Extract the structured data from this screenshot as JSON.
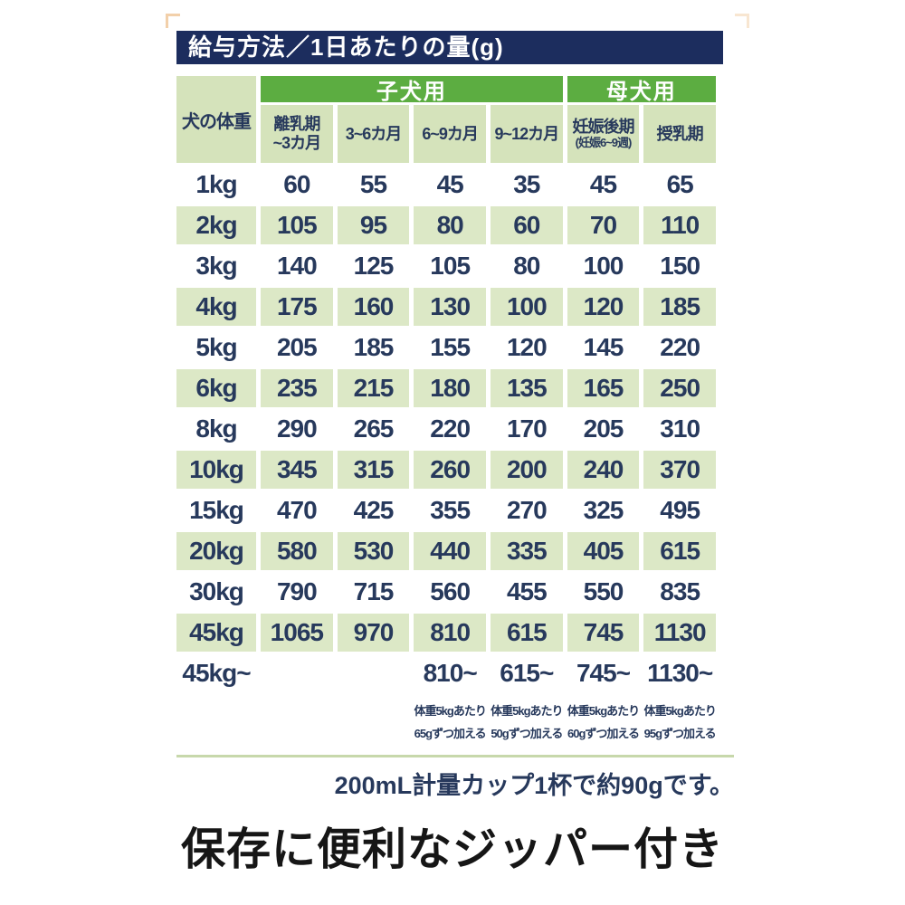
{
  "colors": {
    "title_bar_bg": "#1c2d5e",
    "group_header_green": "#5cad41",
    "subheader_light_green": "#d5e3bb",
    "row_light_green": "#dce8c6",
    "text_navy": "#27395c",
    "divider_sage": "#c7d8ab",
    "caption_black": "#161616",
    "corner_mark_orange": "#ecb87e"
  },
  "title_bar": {
    "text": "給与方法／1日あたりの量(g)"
  },
  "chart_data": {
    "type": "table",
    "title": "給与方法／1日あたりの量(g)",
    "corner_header": "犬の体重",
    "column_groups": [
      {
        "label": "子犬用",
        "span": 4
      },
      {
        "label": "母犬用",
        "span": 2
      }
    ],
    "columns": [
      {
        "lines": [
          "離乳期",
          "~3カ月"
        ]
      },
      {
        "lines": [
          "3~6カ月"
        ]
      },
      {
        "lines": [
          "6~9カ月"
        ]
      },
      {
        "lines": [
          "9~12カ月"
        ]
      },
      {
        "lines": [
          "妊娠後期",
          "(妊娠6~9週)"
        ],
        "small_second_line": true
      },
      {
        "lines": [
          "授乳期"
        ]
      }
    ],
    "rows": [
      {
        "weight": "1kg",
        "values": [
          "60",
          "55",
          "45",
          "35",
          "45",
          "65"
        ]
      },
      {
        "weight": "2kg",
        "values": [
          "105",
          "95",
          "80",
          "60",
          "70",
          "110"
        ]
      },
      {
        "weight": "3kg",
        "values": [
          "140",
          "125",
          "105",
          "80",
          "100",
          "150"
        ]
      },
      {
        "weight": "4kg",
        "values": [
          "175",
          "160",
          "130",
          "100",
          "120",
          "185"
        ]
      },
      {
        "weight": "5kg",
        "values": [
          "205",
          "185",
          "155",
          "120",
          "145",
          "220"
        ]
      },
      {
        "weight": "6kg",
        "values": [
          "235",
          "215",
          "180",
          "135",
          "165",
          "250"
        ]
      },
      {
        "weight": "8kg",
        "values": [
          "290",
          "265",
          "220",
          "170",
          "205",
          "310"
        ]
      },
      {
        "weight": "10kg",
        "values": [
          "345",
          "315",
          "260",
          "200",
          "240",
          "370"
        ]
      },
      {
        "weight": "15kg",
        "values": [
          "470",
          "425",
          "355",
          "270",
          "325",
          "495"
        ]
      },
      {
        "weight": "20kg",
        "values": [
          "580",
          "530",
          "440",
          "335",
          "405",
          "615"
        ]
      },
      {
        "weight": "30kg",
        "values": [
          "790",
          "715",
          "560",
          "455",
          "550",
          "835"
        ]
      },
      {
        "weight": "45kg",
        "values": [
          "1065",
          "970",
          "810",
          "615",
          "745",
          "1130"
        ]
      },
      {
        "weight": "45kg~",
        "values": [
          "",
          "",
          "810~",
          "615~",
          "745~",
          "1130~"
        ]
      }
    ],
    "over_limit_notes": [
      [
        "体重5kgあたり",
        "65gずつ加える"
      ],
      [
        "体重5kgあたり",
        "50gずつ加える"
      ],
      [
        "体重5kgあたり",
        "60gずつ加える"
      ],
      [
        "体重5kgあたり",
        "95gずつ加える"
      ]
    ],
    "footnote": "200mL計量カップ1杯で約90gです。"
  },
  "caption": "保存に便利なジッパー付き"
}
